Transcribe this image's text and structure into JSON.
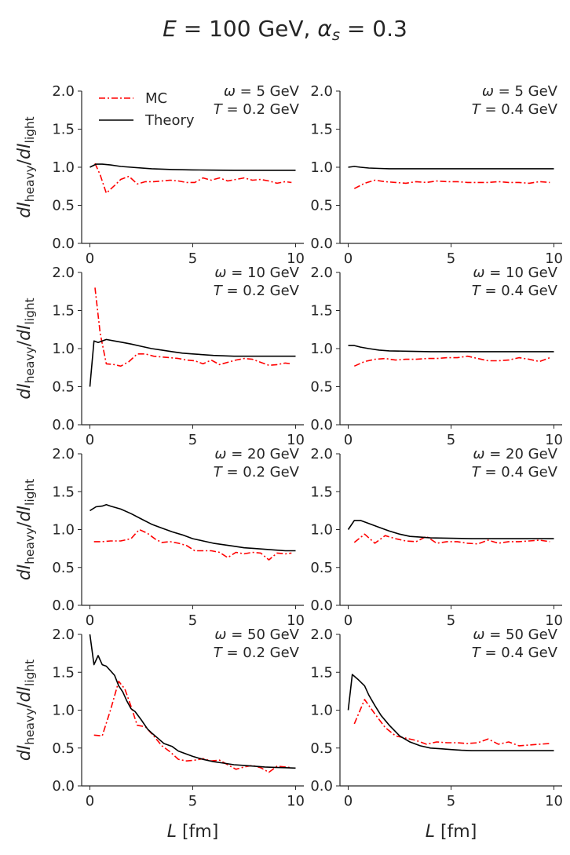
{
  "figure": {
    "title": "E = 100 GeV, αs = 0.3",
    "ylabel": "dIheavy/dIlight",
    "xlabel": "L [fm]",
    "colors": {
      "mc": "#ff0000",
      "theory": "#000000",
      "axes": "#262626"
    }
  },
  "chart_data": [
    {
      "type": "line",
      "panel": "omega5_T0.2",
      "annotation": [
        "ω = 5 GeV",
        "T = 0.2 GeV"
      ],
      "legend": [
        "MC",
        "Theory"
      ],
      "xlim": [
        -0.4,
        10.4
      ],
      "ylim": [
        0,
        2
      ],
      "xticks": [
        "0",
        "5",
        "10"
      ],
      "yticks": [
        "0.0",
        "0.5",
        "1.0",
        "1.5",
        "2.0"
      ],
      "series": [
        {
          "name": "MC",
          "style": "dash-dot",
          "color": "#ff0000",
          "x": [
            0.25,
            0.5,
            0.8,
            1.2,
            1.5,
            1.9,
            2.3,
            2.7,
            3.1,
            3.5,
            3.9,
            4.3,
            4.7,
            5.1,
            5.5,
            5.9,
            6.3,
            6.7,
            7.1,
            7.5,
            7.9,
            8.3,
            8.7,
            9.1,
            9.5,
            9.8
          ],
          "y": [
            1.05,
            0.9,
            0.66,
            0.76,
            0.84,
            0.88,
            0.78,
            0.81,
            0.81,
            0.82,
            0.83,
            0.82,
            0.8,
            0.8,
            0.86,
            0.83,
            0.86,
            0.82,
            0.84,
            0.86,
            0.83,
            0.84,
            0.82,
            0.79,
            0.81,
            0.8
          ]
        },
        {
          "name": "Theory",
          "style": "solid",
          "color": "#000000",
          "x": [
            0,
            0.3,
            0.6,
            1,
            1.5,
            2,
            3,
            4,
            5,
            6,
            7,
            8,
            9,
            10
          ],
          "y": [
            1.0,
            1.04,
            1.04,
            1.03,
            1.01,
            1.0,
            0.98,
            0.97,
            0.965,
            0.962,
            0.96,
            0.96,
            0.96,
            0.96
          ]
        }
      ]
    },
    {
      "type": "line",
      "panel": "omega5_T0.4",
      "annotation": [
        "ω = 5 GeV",
        "T = 0.4 GeV"
      ],
      "xlim": [
        -0.4,
        10.4
      ],
      "ylim": [
        0,
        2
      ],
      "xticks": [
        "0",
        "5",
        "10"
      ],
      "yticks": [
        "0.0",
        "0.5",
        "1.0",
        "1.5",
        "2.0"
      ],
      "series": [
        {
          "name": "MC",
          "style": "dash-dot",
          "color": "#ff0000",
          "x": [
            0.3,
            0.8,
            1.3,
            1.8,
            2.3,
            2.8,
            3.3,
            3.8,
            4.3,
            4.8,
            5.3,
            5.8,
            6.3,
            6.8,
            7.3,
            7.8,
            8.3,
            8.8,
            9.3,
            9.8
          ],
          "y": [
            0.72,
            0.79,
            0.83,
            0.81,
            0.8,
            0.79,
            0.81,
            0.8,
            0.82,
            0.81,
            0.81,
            0.8,
            0.8,
            0.8,
            0.81,
            0.8,
            0.8,
            0.79,
            0.81,
            0.8
          ]
        },
        {
          "name": "Theory",
          "style": "solid",
          "color": "#000000",
          "x": [
            0,
            0.3,
            0.6,
            1,
            1.5,
            2,
            3,
            4,
            5,
            6,
            7,
            8,
            9,
            10
          ],
          "y": [
            1.0,
            1.01,
            1.0,
            0.99,
            0.985,
            0.98,
            0.98,
            0.98,
            0.98,
            0.98,
            0.98,
            0.98,
            0.98,
            0.98
          ]
        }
      ]
    },
    {
      "type": "line",
      "panel": "omega10_T0.2",
      "annotation": [
        "ω = 10 GeV",
        "T = 0.2 GeV"
      ],
      "xlim": [
        -0.4,
        10.4
      ],
      "ylim": [
        0,
        2
      ],
      "xticks": [
        "0",
        "5",
        "10"
      ],
      "yticks": [
        "0.0",
        "0.5",
        "1.0",
        "1.5",
        "2.0"
      ],
      "series": [
        {
          "name": "MC",
          "style": "dash-dot",
          "color": "#ff0000",
          "x": [
            0.25,
            0.5,
            0.8,
            1.2,
            1.5,
            1.9,
            2.3,
            2.7,
            3.1,
            3.5,
            3.9,
            4.3,
            4.7,
            5.1,
            5.5,
            5.9,
            6.3,
            6.7,
            7.1,
            7.5,
            7.9,
            8.3,
            8.7,
            9.1,
            9.5,
            9.8
          ],
          "y": [
            1.8,
            1.2,
            0.8,
            0.79,
            0.77,
            0.83,
            0.93,
            0.93,
            0.9,
            0.89,
            0.88,
            0.87,
            0.85,
            0.84,
            0.8,
            0.85,
            0.79,
            0.82,
            0.85,
            0.87,
            0.86,
            0.82,
            0.78,
            0.79,
            0.81,
            0.8
          ]
        },
        {
          "name": "Theory",
          "style": "solid",
          "color": "#000000",
          "x": [
            0,
            0.2,
            0.4,
            0.6,
            0.8,
            1.2,
            1.6,
            2,
            2.5,
            3,
            3.5,
            4,
            4.5,
            5,
            6,
            7,
            8,
            9,
            10
          ],
          "y": [
            0.5,
            1.1,
            1.08,
            1.1,
            1.12,
            1.1,
            1.08,
            1.06,
            1.03,
            1.0,
            0.98,
            0.96,
            0.94,
            0.93,
            0.91,
            0.9,
            0.9,
            0.9,
            0.9
          ]
        }
      ]
    },
    {
      "type": "line",
      "panel": "omega10_T0.4",
      "annotation": [
        "ω = 10 GeV",
        "T = 0.4 GeV"
      ],
      "xlim": [
        -0.4,
        10.4
      ],
      "ylim": [
        0,
        2
      ],
      "xticks": [
        "0",
        "5",
        "10"
      ],
      "yticks": [
        "0.0",
        "0.5",
        "1.0",
        "1.5",
        "2.0"
      ],
      "series": [
        {
          "name": "MC",
          "style": "dash-dot",
          "color": "#ff0000",
          "x": [
            0.3,
            0.8,
            1.3,
            1.8,
            2.3,
            2.8,
            3.3,
            3.8,
            4.3,
            4.8,
            5.3,
            5.8,
            6.3,
            6.8,
            7.3,
            7.8,
            8.3,
            8.8,
            9.3,
            9.8
          ],
          "y": [
            0.77,
            0.83,
            0.86,
            0.87,
            0.85,
            0.86,
            0.86,
            0.87,
            0.87,
            0.88,
            0.88,
            0.9,
            0.87,
            0.84,
            0.84,
            0.85,
            0.88,
            0.86,
            0.83,
            0.88
          ]
        },
        {
          "name": "Theory",
          "style": "solid",
          "color": "#000000",
          "x": [
            0,
            0.3,
            0.6,
            1,
            1.5,
            2,
            3,
            4,
            5,
            6,
            7,
            8,
            9,
            10
          ],
          "y": [
            1.04,
            1.04,
            1.02,
            1.0,
            0.98,
            0.97,
            0.965,
            0.96,
            0.96,
            0.96,
            0.96,
            0.96,
            0.96,
            0.96
          ]
        }
      ]
    },
    {
      "type": "line",
      "panel": "omega20_T0.2",
      "annotation": [
        "ω = 20 GeV",
        "T = 0.2 GeV"
      ],
      "xlim": [
        -0.4,
        10.4
      ],
      "ylim": [
        0,
        2
      ],
      "xticks": [
        "0",
        "5",
        "10"
      ],
      "yticks": [
        "0.0",
        "0.5",
        "1.0",
        "1.5",
        "2.0"
      ],
      "series": [
        {
          "name": "MC",
          "style": "dash-dot",
          "color": "#ff0000",
          "x": [
            0.2,
            0.6,
            1,
            1.5,
            2,
            2.4,
            2.8,
            3.2,
            3.5,
            3.9,
            4.3,
            4.7,
            5.1,
            5.5,
            5.9,
            6.3,
            6.7,
            7.1,
            7.5,
            7.9,
            8.3,
            8.7,
            9.1,
            9.5,
            9.8
          ],
          "y": [
            0.84,
            0.84,
            0.85,
            0.85,
            0.88,
            1.0,
            0.95,
            0.87,
            0.83,
            0.84,
            0.82,
            0.79,
            0.72,
            0.72,
            0.72,
            0.7,
            0.63,
            0.7,
            0.68,
            0.7,
            0.69,
            0.6,
            0.69,
            0.68,
            0.69
          ]
        },
        {
          "name": "Theory",
          "style": "solid",
          "color": "#000000",
          "x": [
            0,
            0.3,
            0.6,
            0.8,
            1,
            1.5,
            2,
            2.5,
            3,
            3.5,
            4,
            4.5,
            5,
            5.5,
            6,
            6.5,
            7,
            7.5,
            8,
            8.5,
            9,
            9.5,
            10
          ],
          "y": [
            1.25,
            1.3,
            1.31,
            1.33,
            1.31,
            1.27,
            1.21,
            1.14,
            1.07,
            1.02,
            0.97,
            0.93,
            0.88,
            0.85,
            0.82,
            0.8,
            0.78,
            0.76,
            0.75,
            0.74,
            0.73,
            0.72,
            0.72
          ]
        }
      ]
    },
    {
      "type": "line",
      "panel": "omega20_T0.4",
      "annotation": [
        "ω = 20 GeV",
        "T = 0.4 GeV"
      ],
      "xlim": [
        -0.4,
        10.4
      ],
      "ylim": [
        0,
        2
      ],
      "xticks": [
        "0",
        "5",
        "10"
      ],
      "yticks": [
        "0.0",
        "0.5",
        "1.0",
        "1.5",
        "2.0"
      ],
      "series": [
        {
          "name": "MC",
          "style": "dash-dot",
          "color": "#ff0000",
          "x": [
            0.3,
            0.8,
            1.3,
            1.8,
            2.3,
            2.8,
            3.3,
            3.8,
            4.3,
            4.8,
            5.3,
            5.8,
            6.3,
            6.8,
            7.3,
            7.8,
            8.3,
            8.8,
            9.3,
            9.8
          ],
          "y": [
            0.83,
            0.94,
            0.82,
            0.92,
            0.88,
            0.85,
            0.84,
            0.91,
            0.82,
            0.84,
            0.84,
            0.82,
            0.81,
            0.86,
            0.82,
            0.84,
            0.84,
            0.85,
            0.86,
            0.84
          ]
        },
        {
          "name": "Theory",
          "style": "solid",
          "color": "#000000",
          "x": [
            0,
            0.3,
            0.6,
            1,
            1.5,
            2,
            2.5,
            3,
            3.5,
            4,
            5,
            6,
            7,
            8,
            9,
            10
          ],
          "y": [
            1.0,
            1.12,
            1.12,
            1.08,
            1.03,
            0.98,
            0.94,
            0.91,
            0.9,
            0.89,
            0.885,
            0.88,
            0.88,
            0.88,
            0.88,
            0.88
          ]
        }
      ]
    },
    {
      "type": "line",
      "panel": "omega50_T0.2",
      "annotation": [
        "ω = 50 GeV",
        "T = 0.2 GeV"
      ],
      "xlim": [
        -0.4,
        10.4
      ],
      "ylim": [
        0,
        2
      ],
      "xticks": [
        "0",
        "5",
        "10"
      ],
      "yticks": [
        "0.0",
        "0.5",
        "1.0",
        "1.5",
        "2.0"
      ],
      "series": [
        {
          "name": "MC",
          "style": "dash-dot",
          "color": "#ff0000",
          "x": [
            0.2,
            0.6,
            1,
            1.4,
            1.7,
            2,
            2.3,
            2.7,
            3.1,
            3.5,
            3.9,
            4.3,
            4.7,
            5.1,
            5.5,
            5.9,
            6.3,
            6.7,
            7.1,
            7.5,
            7.9,
            8.3,
            8.7,
            9.1,
            9.5,
            9.8
          ],
          "y": [
            0.67,
            0.66,
            1.0,
            1.38,
            1.28,
            1.05,
            0.8,
            0.78,
            0.66,
            0.53,
            0.45,
            0.35,
            0.33,
            0.34,
            0.36,
            0.33,
            0.34,
            0.28,
            0.22,
            0.25,
            0.27,
            0.24,
            0.18,
            0.26,
            0.25,
            0.24
          ]
        },
        {
          "name": "Theory",
          "style": "solid",
          "color": "#000000",
          "x": [
            0,
            0.2,
            0.4,
            0.6,
            0.8,
            1,
            1.2,
            1.4,
            1.6,
            1.8,
            2,
            2.2,
            2.5,
            2.8,
            3,
            3.3,
            3.6,
            4,
            4.3,
            4.6,
            5,
            5.5,
            6,
            6.5,
            7,
            7.5,
            8,
            8.5,
            9,
            9.5,
            10
          ],
          "y": [
            2.0,
            1.6,
            1.72,
            1.6,
            1.58,
            1.52,
            1.46,
            1.32,
            1.24,
            1.12,
            1.02,
            0.98,
            0.87,
            0.75,
            0.7,
            0.63,
            0.56,
            0.52,
            0.46,
            0.43,
            0.39,
            0.35,
            0.32,
            0.3,
            0.28,
            0.27,
            0.26,
            0.25,
            0.245,
            0.24,
            0.235
          ]
        }
      ]
    },
    {
      "type": "line",
      "panel": "omega50_T0.4",
      "annotation": [
        "ω = 50 GeV",
        "T = 0.4 GeV"
      ],
      "xlim": [
        -0.4,
        10.4
      ],
      "ylim": [
        0,
        2
      ],
      "xticks": [
        "0",
        "5",
        "10"
      ],
      "yticks": [
        "0.0",
        "0.5",
        "1.0",
        "1.5",
        "2.0"
      ],
      "series": [
        {
          "name": "MC",
          "style": "dash-dot",
          "color": "#ff0000",
          "x": [
            0.3,
            0.8,
            1.3,
            1.8,
            2.3,
            2.8,
            3.3,
            3.8,
            4.3,
            4.8,
            5.3,
            5.8,
            6.3,
            6.8,
            7.3,
            7.8,
            8.3,
            8.8,
            9.3,
            9.8
          ],
          "y": [
            0.82,
            1.14,
            0.95,
            0.77,
            0.66,
            0.63,
            0.6,
            0.55,
            0.58,
            0.57,
            0.57,
            0.56,
            0.57,
            0.62,
            0.55,
            0.58,
            0.53,
            0.54,
            0.55,
            0.56
          ]
        },
        {
          "name": "Theory",
          "style": "solid",
          "color": "#000000",
          "x": [
            0,
            0.2,
            0.5,
            0.8,
            1,
            1.3,
            1.6,
            2,
            2.5,
            3,
            3.5,
            4,
            4.5,
            5,
            5.5,
            6,
            7,
            8,
            9,
            10
          ],
          "y": [
            1.0,
            1.47,
            1.4,
            1.32,
            1.2,
            1.06,
            0.93,
            0.8,
            0.66,
            0.58,
            0.53,
            0.5,
            0.49,
            0.48,
            0.47,
            0.465,
            0.465,
            0.465,
            0.465,
            0.465
          ]
        }
      ]
    }
  ]
}
